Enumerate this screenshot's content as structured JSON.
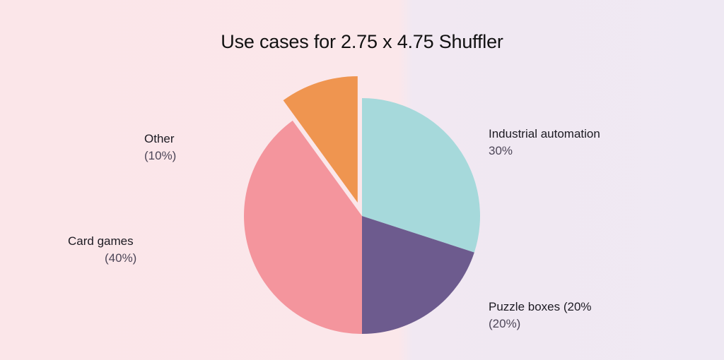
{
  "chart_data": {
    "type": "pie",
    "title": "Use cases for 2.75 x 4.75 Shuffler",
    "slices": [
      {
        "label": "Industrial automation",
        "value": 30,
        "pct_text": "30%",
        "color": "#a6d9db"
      },
      {
        "label": "Puzzle boxes",
        "value": 20,
        "pct_text": "(20%)",
        "color": "#6d5b8e"
      },
      {
        "label": "Card games",
        "value": 40,
        "pct_text": "(40%)",
        "color": "#f4959d"
      },
      {
        "label": "Other",
        "value": 10,
        "pct_text": "(10%)",
        "color": "#ef9550",
        "exploded": true
      }
    ]
  },
  "labels": {
    "other_name": "Other",
    "other_pct": "(10%)",
    "card_name": "Card games",
    "card_pct": "(40%)",
    "industrial_name": "Industrial automation",
    "industrial_pct": "30%",
    "puzzle_name": "Puzzle boxes (20%",
    "puzzle_pct": "(20%)"
  }
}
